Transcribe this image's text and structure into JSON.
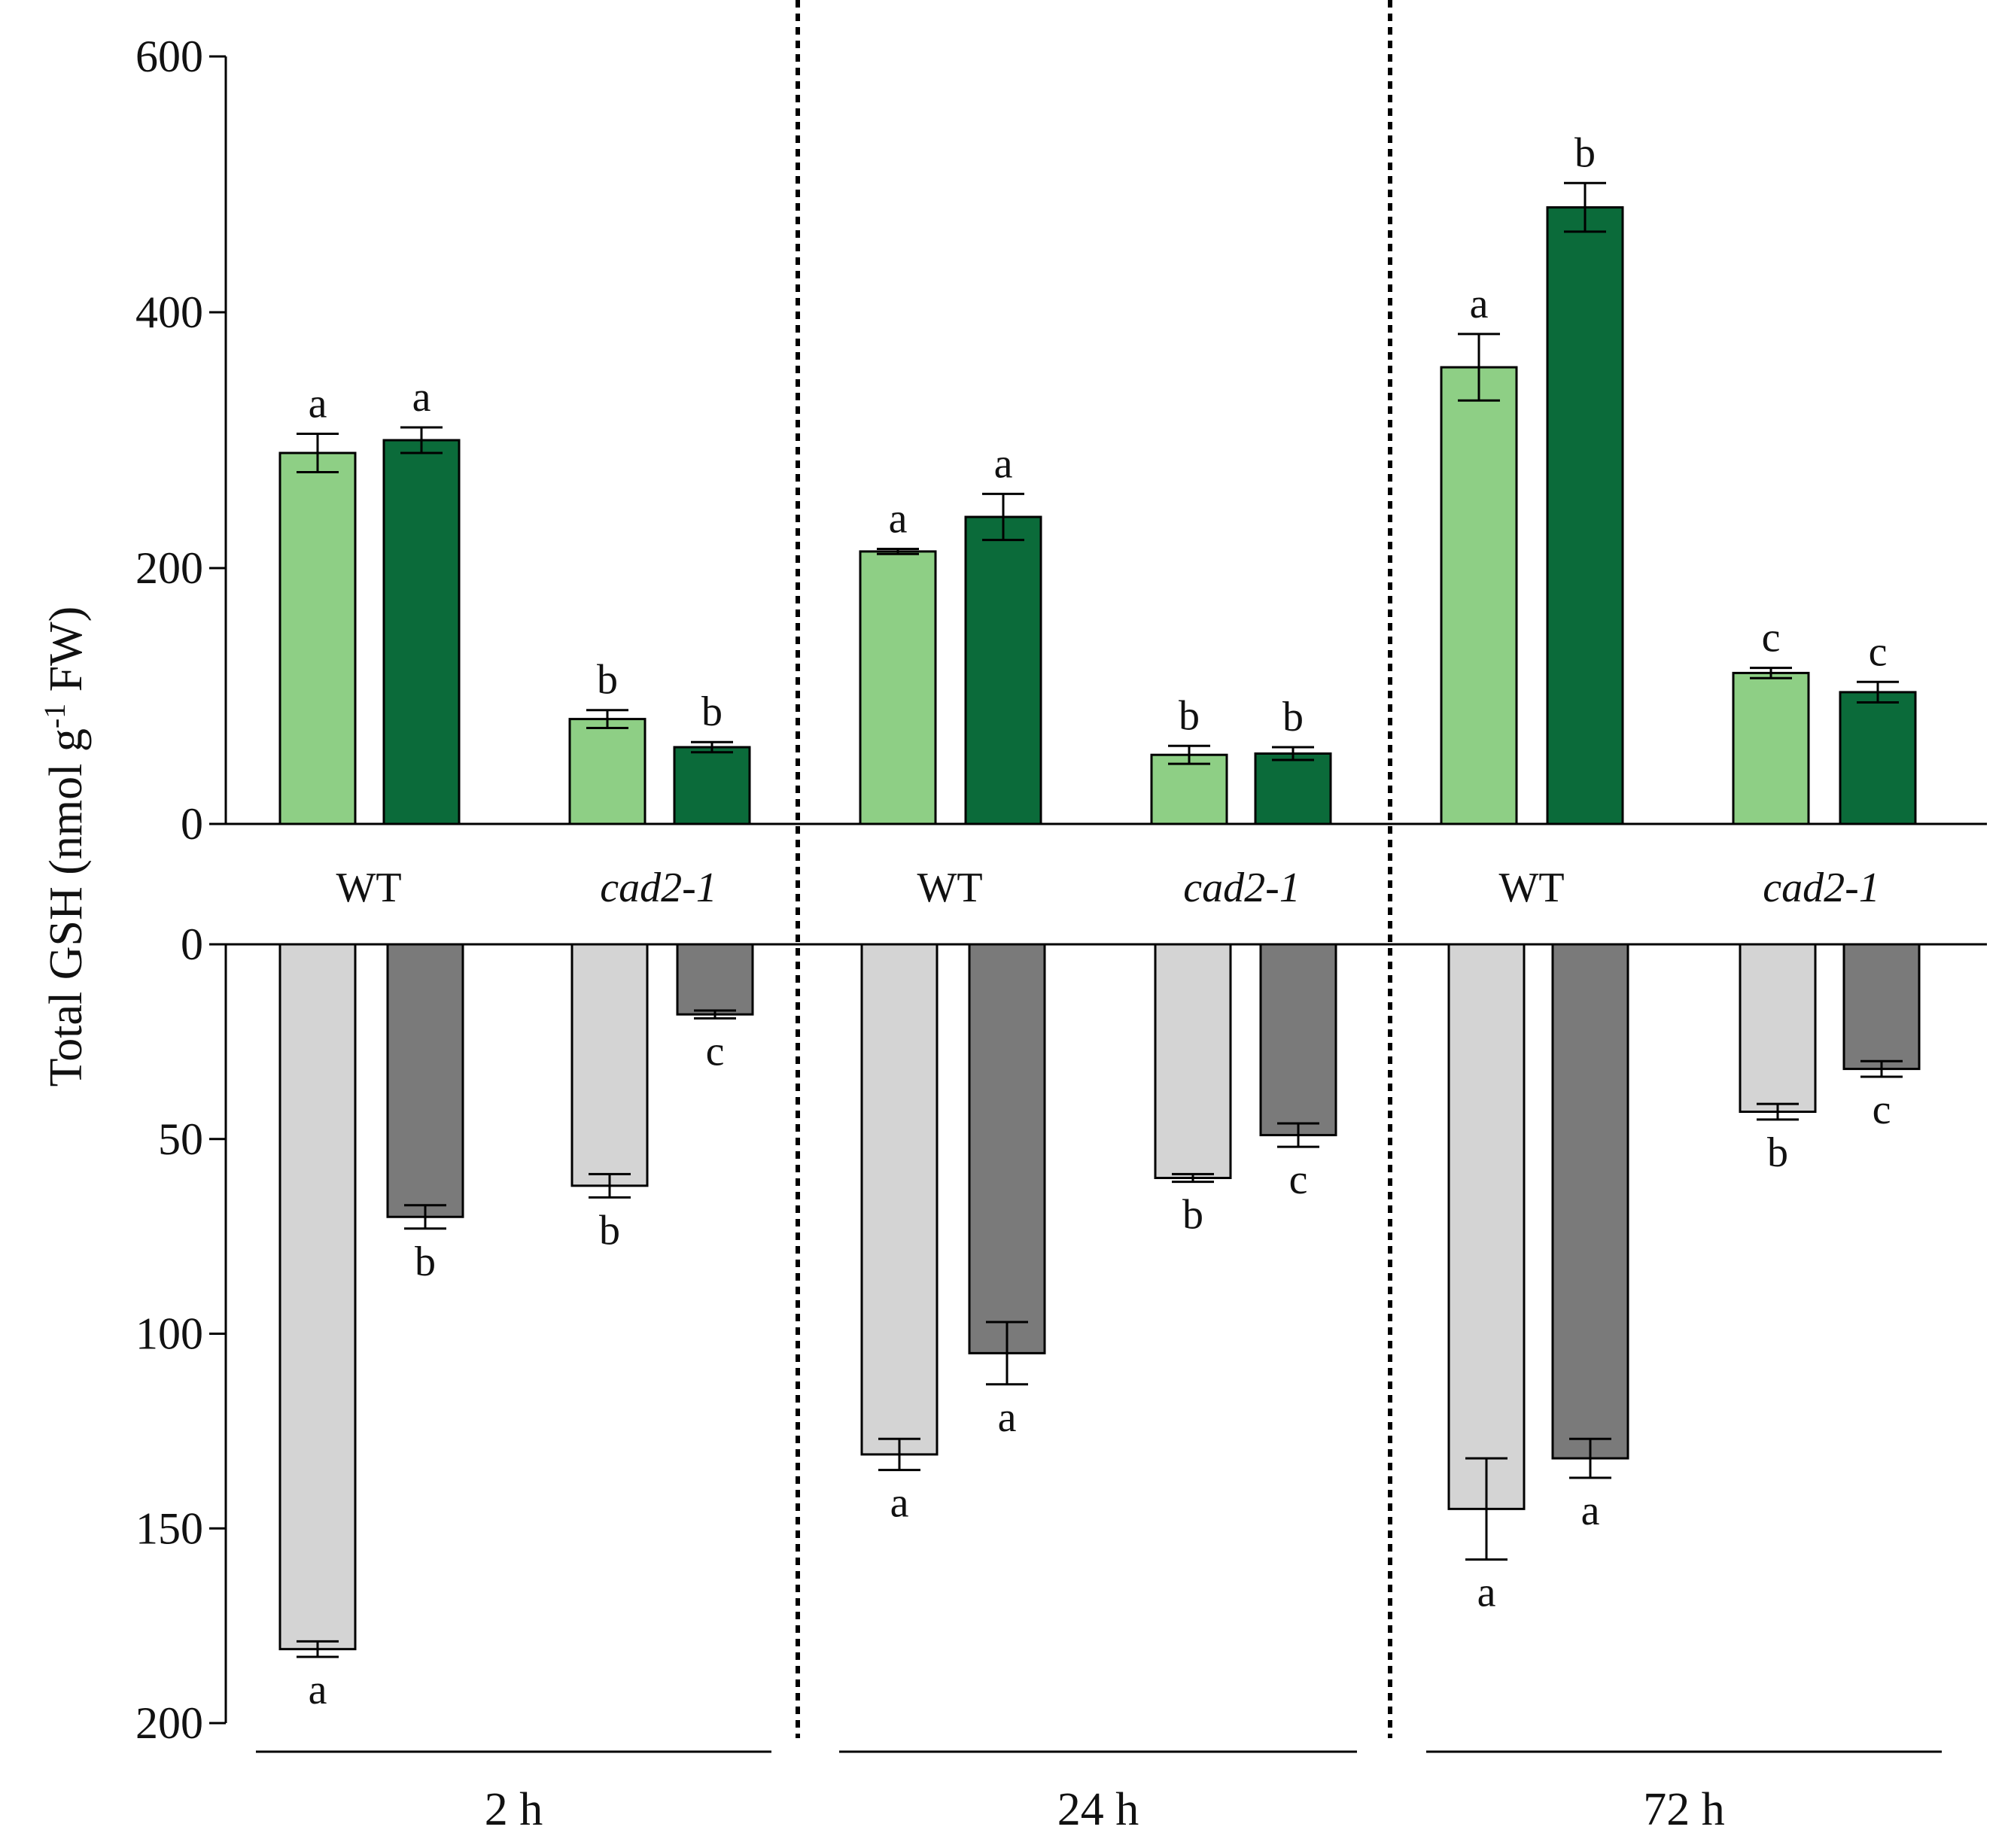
{
  "chart_data": {
    "type": "bar",
    "ylabel_parts": [
      "Total GSH (nmol g",
      "-1",
      " FW)"
    ],
    "time_points": [
      "2 h",
      "24 h",
      "72 h"
    ],
    "genotypes": [
      "WT",
      "cad2-1"
    ],
    "colors": {
      "top_light": "#8ecf85",
      "top_dark": "#0b6b3a",
      "bottom_light": "#d4d4d4",
      "bottom_dark": "#7a7a7a",
      "axis": "#000000"
    },
    "top_panel": {
      "ylim": [
        0,
        600
      ],
      "ticks": [
        0,
        200,
        400,
        600
      ],
      "bars": [
        {
          "time": "2 h",
          "genotype": "WT",
          "light": {
            "value": 290,
            "err": 15,
            "letter": "a"
          },
          "dark": {
            "value": 300,
            "err": 10,
            "letter": "a"
          }
        },
        {
          "time": "2 h",
          "genotype": "cad2-1",
          "light": {
            "value": 82,
            "err": 7,
            "letter": "b"
          },
          "dark": {
            "value": 60,
            "err": 4,
            "letter": "b"
          }
        },
        {
          "time": "24 h",
          "genotype": "WT",
          "light": {
            "value": 213,
            "err": 2,
            "letter": "a"
          },
          "dark": {
            "value": 240,
            "err": 18,
            "letter": "a"
          }
        },
        {
          "time": "24 h",
          "genotype": "cad2-1",
          "light": {
            "value": 54,
            "err": 7,
            "letter": "b"
          },
          "dark": {
            "value": 55,
            "err": 5,
            "letter": "b"
          }
        },
        {
          "time": "72 h",
          "genotype": "WT",
          "light": {
            "value": 357,
            "err": 26,
            "letter": "a"
          },
          "dark": {
            "value": 482,
            "err": 19,
            "letter": "b"
          }
        },
        {
          "time": "72 h",
          "genotype": "cad2-1",
          "light": {
            "value": 118,
            "err": 4,
            "letter": "c"
          },
          "dark": {
            "value": 103,
            "err": 8,
            "letter": "c"
          }
        }
      ]
    },
    "bottom_panel": {
      "ylim": [
        0,
        200
      ],
      "ticks": [
        0,
        50,
        100,
        150,
        200
      ],
      "bars": [
        {
          "time": "2 h",
          "genotype": "WT",
          "light": {
            "value": 181,
            "err": 2,
            "letter": "a"
          },
          "dark": {
            "value": 70,
            "err": 3,
            "letter": "b"
          }
        },
        {
          "time": "2 h",
          "genotype": "cad2-1",
          "light": {
            "value": 62,
            "err": 3,
            "letter": "b"
          },
          "dark": {
            "value": 18,
            "err": 1,
            "letter": "c"
          }
        },
        {
          "time": "24 h",
          "genotype": "WT",
          "light": {
            "value": 131,
            "err": 4,
            "letter": "a"
          },
          "dark": {
            "value": 105,
            "err": 8,
            "letter": "a"
          }
        },
        {
          "time": "24 h",
          "genotype": "cad2-1",
          "light": {
            "value": 60,
            "err": 1,
            "letter": "b"
          },
          "dark": {
            "value": 49,
            "err": 3,
            "letter": "c"
          }
        },
        {
          "time": "72 h",
          "genotype": "WT",
          "light": {
            "value": 145,
            "err": 13,
            "letter": "a"
          },
          "dark": {
            "value": 132,
            "err": 5,
            "letter": "a"
          }
        },
        {
          "time": "72 h",
          "genotype": "cad2-1",
          "light": {
            "value": 43,
            "err": 2,
            "letter": "b"
          },
          "dark": {
            "value": 32,
            "err": 2,
            "letter": "c"
          }
        }
      ]
    }
  }
}
